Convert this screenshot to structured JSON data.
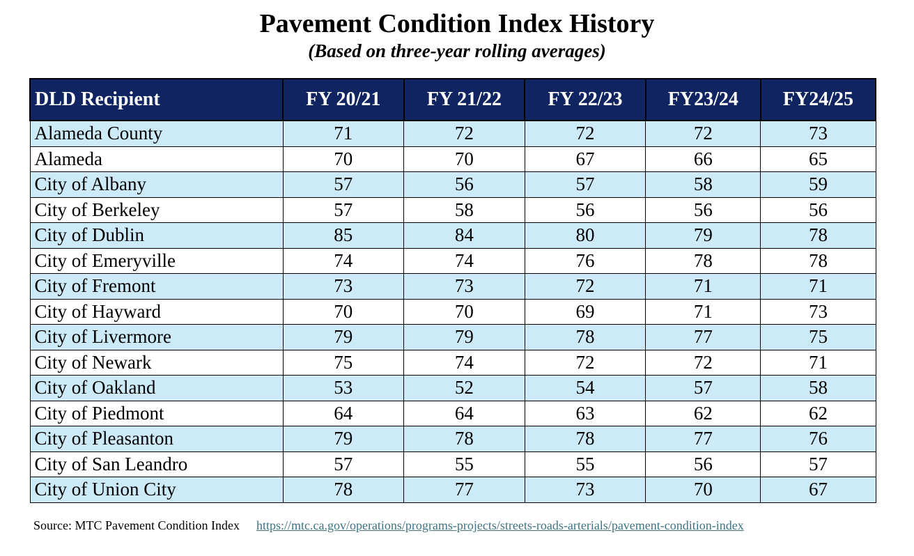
{
  "header": {
    "title": "Pavement Condition Index History",
    "subtitle": "(Based on three-year rolling averages)"
  },
  "table": {
    "columns": [
      "DLD Recipient",
      "FY 20/21",
      "FY 21/22",
      "FY 22/23",
      "FY23/24",
      "FY24/25"
    ],
    "rows": [
      [
        "Alameda County",
        71,
        72,
        72,
        72,
        73
      ],
      [
        "Alameda",
        70,
        70,
        67,
        66,
        65
      ],
      [
        "City of Albany",
        57,
        56,
        57,
        58,
        59
      ],
      [
        "City of Berkeley",
        57,
        58,
        56,
        56,
        56
      ],
      [
        "City of Dublin",
        85,
        84,
        80,
        79,
        78
      ],
      [
        "City of Emeryville",
        74,
        74,
        76,
        78,
        78
      ],
      [
        "City of Fremont",
        73,
        73,
        72,
        71,
        71
      ],
      [
        "City of Hayward",
        70,
        70,
        69,
        71,
        73
      ],
      [
        "City of Livermore",
        79,
        79,
        78,
        77,
        75
      ],
      [
        "City of Newark",
        75,
        74,
        72,
        72,
        71
      ],
      [
        "City of Oakland",
        53,
        52,
        54,
        57,
        58
      ],
      [
        "City of Piedmont",
        64,
        64,
        63,
        62,
        62
      ],
      [
        "City of Pleasanton",
        79,
        78,
        78,
        77,
        76
      ],
      [
        "City of San Leandro",
        57,
        55,
        55,
        56,
        57
      ],
      [
        "City of Union City",
        78,
        77,
        73,
        70,
        67
      ]
    ]
  },
  "footer": {
    "source": "Source: MTC Pavement Condition Index",
    "link": "https://mtc.ca.gov/operations/programs-projects/streets-roads-arterials/pavement-condition-index"
  }
}
